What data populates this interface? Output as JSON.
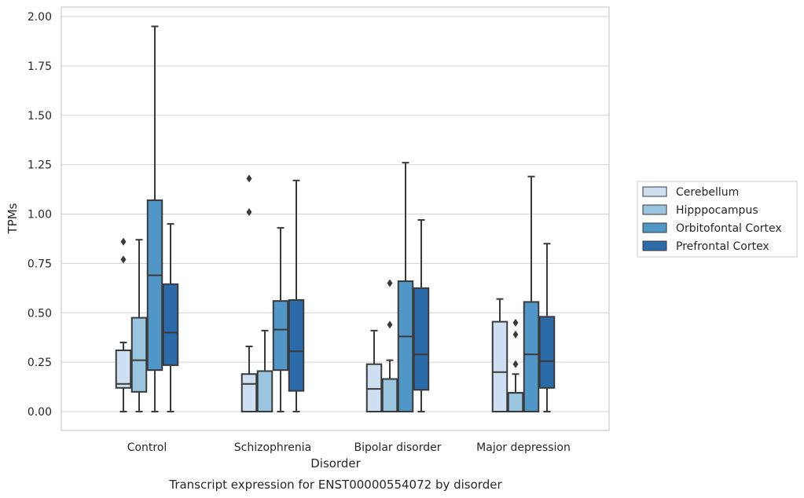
{
  "chart_data": {
    "type": "box",
    "xlabel": "Disorder",
    "ylabel": "TPMs",
    "caption": "Transcript expression for ENST00000554072 by disorder",
    "ylim": [
      -0.1,
      2.05
    ],
    "yticks": [
      "0.00",
      "0.25",
      "0.50",
      "0.75",
      "1.00",
      "1.25",
      "1.50",
      "1.75",
      "2.00"
    ],
    "grid": true,
    "legend_position": "right",
    "categories": [
      "Control",
      "Schizophrenia",
      "Bipolar disorder",
      "Major depression"
    ],
    "series": [
      {
        "name": "Cerebellum",
        "color": "#cddff0",
        "boxes": [
          {
            "whislo": 0.0,
            "q1": 0.12,
            "med": 0.14,
            "q3": 0.31,
            "whishi": 0.35,
            "fliers": [
              0.77,
              0.86
            ]
          },
          {
            "whislo": 0.0,
            "q1": 0.0,
            "med": 0.14,
            "q3": 0.19,
            "whishi": 0.33,
            "fliers": [
              1.01,
              1.18
            ]
          },
          {
            "whislo": 0.0,
            "q1": 0.0,
            "med": 0.115,
            "q3": 0.24,
            "whishi": 0.41,
            "fliers": []
          },
          {
            "whislo": 0.0,
            "q1": 0.0,
            "med": 0.2,
            "q3": 0.455,
            "whishi": 0.57,
            "fliers": []
          }
        ]
      },
      {
        "name": "Hipppocampus",
        "color": "#9ac5df",
        "boxes": [
          {
            "whislo": 0.0,
            "q1": 0.1,
            "med": 0.26,
            "q3": 0.475,
            "whishi": 0.87,
            "fliers": []
          },
          {
            "whislo": 0.0,
            "q1": 0.0,
            "med": 0.0,
            "q3": 0.205,
            "whishi": 0.41,
            "fliers": []
          },
          {
            "whislo": 0.0,
            "q1": 0.0,
            "med": 0.0,
            "q3": 0.165,
            "whishi": 0.26,
            "fliers": [
              0.44,
              0.65
            ]
          },
          {
            "whislo": 0.0,
            "q1": 0.0,
            "med": 0.095,
            "q3": 0.095,
            "whishi": 0.19,
            "fliers": [
              0.24,
              0.39,
              0.45
            ]
          }
        ]
      },
      {
        "name": "Orbitofontal Cortex",
        "color": "#5096c7",
        "boxes": [
          {
            "whislo": 0.0,
            "q1": 0.21,
            "med": 0.69,
            "q3": 1.07,
            "whishi": 1.95,
            "fliers": []
          },
          {
            "whislo": 0.0,
            "q1": 0.21,
            "med": 0.415,
            "q3": 0.56,
            "whishi": 0.93,
            "fliers": []
          },
          {
            "whislo": 0.0,
            "q1": 0.0,
            "med": 0.38,
            "q3": 0.66,
            "whishi": 1.26,
            "fliers": []
          },
          {
            "whislo": 0.0,
            "q1": 0.0,
            "med": 0.29,
            "q3": 0.555,
            "whishi": 1.19,
            "fliers": []
          }
        ]
      },
      {
        "name": "Prefrontal Cortex",
        "color": "#2b6ba9",
        "boxes": [
          {
            "whislo": 0.0,
            "q1": 0.235,
            "med": 0.4,
            "q3": 0.645,
            "whishi": 0.95,
            "fliers": []
          },
          {
            "whislo": 0.0,
            "q1": 0.105,
            "med": 0.305,
            "q3": 0.565,
            "whishi": 1.17,
            "fliers": []
          },
          {
            "whislo": 0.0,
            "q1": 0.11,
            "med": 0.29,
            "q3": 0.625,
            "whishi": 0.97,
            "fliers": []
          },
          {
            "whislo": 0.0,
            "q1": 0.12,
            "med": 0.255,
            "q3": 0.48,
            "whishi": 0.85,
            "fliers": []
          }
        ]
      }
    ]
  }
}
